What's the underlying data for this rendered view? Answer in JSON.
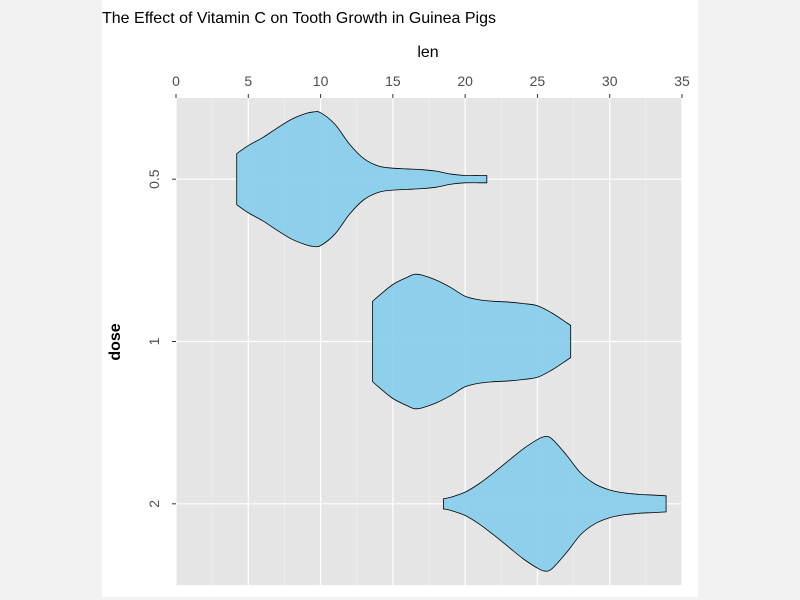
{
  "chart_data": {
    "type": "violin",
    "title": "The Effect of Vitamin C on Tooth Growth in Guinea Pigs",
    "xlabel": "len",
    "ylabel": "dose",
    "xlim": [
      0,
      35
    ],
    "x_ticks": [
      0,
      5,
      10,
      15,
      20,
      25,
      30,
      35
    ],
    "x_axis_position": "top",
    "categories": [
      "0.5",
      "1",
      "2"
    ],
    "grid": true,
    "panel_color": "#e5e5e5",
    "fill_color": "#87CEEB",
    "outline_color": "#000000",
    "series": [
      {
        "category": "0.5",
        "range": [
          4.2,
          21.5
        ],
        "profile": [
          [
            4.2,
            0.35
          ],
          [
            5,
            0.46
          ],
          [
            6,
            0.57
          ],
          [
            7,
            0.7
          ],
          [
            8,
            0.82
          ],
          [
            9,
            0.9
          ],
          [
            9.5,
            0.92
          ],
          [
            10,
            0.91
          ],
          [
            11,
            0.75
          ],
          [
            12,
            0.48
          ],
          [
            13,
            0.28
          ],
          [
            14,
            0.18
          ],
          [
            15,
            0.15
          ],
          [
            16,
            0.14
          ],
          [
            17,
            0.13
          ],
          [
            18,
            0.11
          ],
          [
            19,
            0.07
          ],
          [
            20,
            0.05
          ],
          [
            21,
            0.05
          ],
          [
            21.5,
            0.05
          ]
        ]
      },
      {
        "category": "1",
        "range": [
          13.6,
          27.3
        ],
        "profile": [
          [
            13.6,
            0.55
          ],
          [
            14,
            0.62
          ],
          [
            15,
            0.78
          ],
          [
            16,
            0.88
          ],
          [
            16.5,
            0.92
          ],
          [
            17,
            0.91
          ],
          [
            18,
            0.84
          ],
          [
            19,
            0.74
          ],
          [
            20,
            0.62
          ],
          [
            21,
            0.57
          ],
          [
            22,
            0.55
          ],
          [
            23,
            0.54
          ],
          [
            24,
            0.52
          ],
          [
            25,
            0.49
          ],
          [
            26,
            0.39
          ],
          [
            27,
            0.26
          ],
          [
            27.3,
            0.22
          ]
        ]
      },
      {
        "category": "2",
        "range": [
          18.5,
          33.9
        ],
        "profile": [
          [
            18.5,
            0.07
          ],
          [
            19,
            0.09
          ],
          [
            20,
            0.16
          ],
          [
            21,
            0.28
          ],
          [
            22,
            0.43
          ],
          [
            23,
            0.59
          ],
          [
            24,
            0.75
          ],
          [
            25,
            0.88
          ],
          [
            25.5,
            0.92
          ],
          [
            26,
            0.89
          ],
          [
            27,
            0.67
          ],
          [
            28,
            0.42
          ],
          [
            29,
            0.27
          ],
          [
            30,
            0.19
          ],
          [
            31,
            0.15
          ],
          [
            32,
            0.13
          ],
          [
            33,
            0.12
          ],
          [
            33.9,
            0.11
          ]
        ]
      }
    ]
  }
}
